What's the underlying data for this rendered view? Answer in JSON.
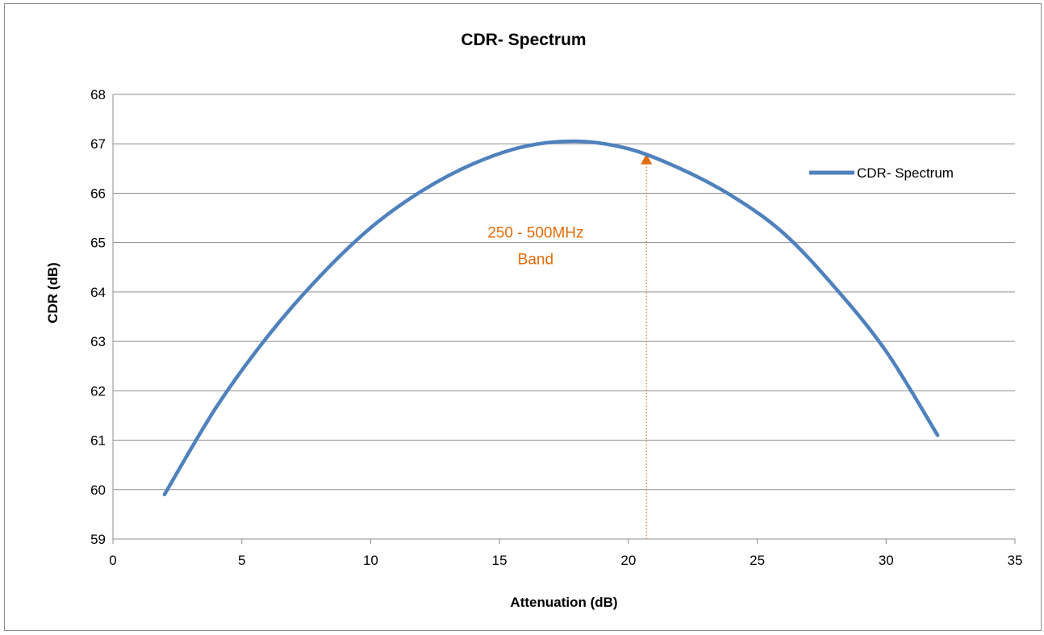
{
  "chart_data": {
    "type": "line",
    "title": "CDR- Spectrum",
    "xlabel": "Attenuation (dB)",
    "ylabel": "CDR (dB)",
    "xlim": [
      0,
      35
    ],
    "ylim": [
      59,
      68
    ],
    "xticks": [
      0,
      5,
      10,
      15,
      20,
      25,
      30,
      35
    ],
    "yticks": [
      59,
      60,
      61,
      62,
      63,
      64,
      65,
      66,
      67,
      68
    ],
    "grid": "horizontal",
    "legend_position": "right",
    "series": [
      {
        "name": "CDR- Spectrum",
        "color": "#4f81bd",
        "x": [
          2,
          4,
          6,
          8,
          10,
          12,
          14,
          16,
          18,
          20,
          22,
          24,
          26,
          28,
          30,
          32
        ],
        "y": [
          59.9,
          61.66,
          63.1,
          64.3,
          65.3,
          66.05,
          66.6,
          66.95,
          67.05,
          66.9,
          66.5,
          65.95,
          65.2,
          64.1,
          62.8,
          61.1
        ]
      }
    ],
    "annotations": [
      {
        "text_lines": [
          "250 - 500MHz",
          "Band"
        ],
        "color": "#e36c09",
        "marker_x": 20.7,
        "marker_y_top": 66.7,
        "text_x": 16.4,
        "text_y": 65.1
      }
    ]
  }
}
